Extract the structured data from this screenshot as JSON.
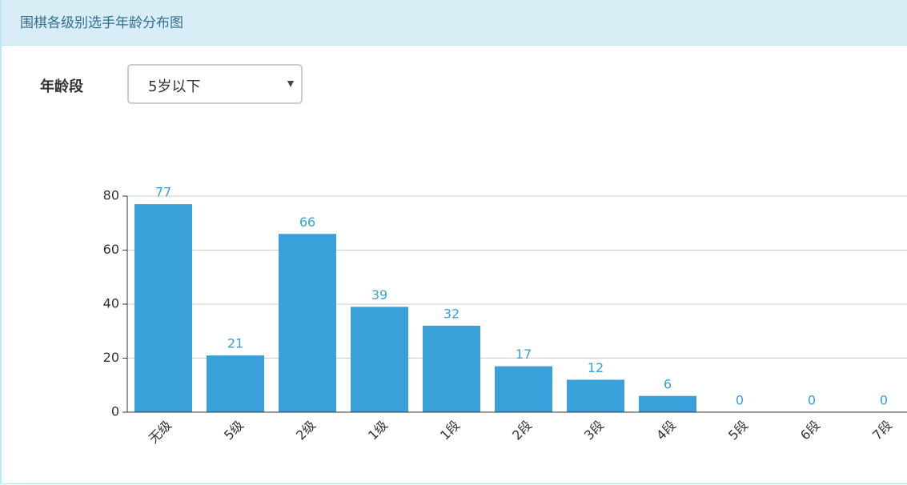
{
  "header": {
    "title": "围棋各级别选手年龄分布图"
  },
  "filter": {
    "label": "年龄段",
    "value": "5岁以下"
  },
  "chart_data": {
    "type": "bar",
    "categories": [
      "无级",
      "5级",
      "2级",
      "1级",
      "1段",
      "2段",
      "3段",
      "4段",
      "5段",
      "6段",
      "7段"
    ],
    "values": [
      77,
      21,
      66,
      39,
      32,
      17,
      12,
      6,
      0,
      0,
      0
    ],
    "color": "#39a0da",
    "ylim": [
      0,
      80
    ],
    "yticks": [
      0,
      20,
      40,
      60,
      80
    ],
    "grid": true
  }
}
